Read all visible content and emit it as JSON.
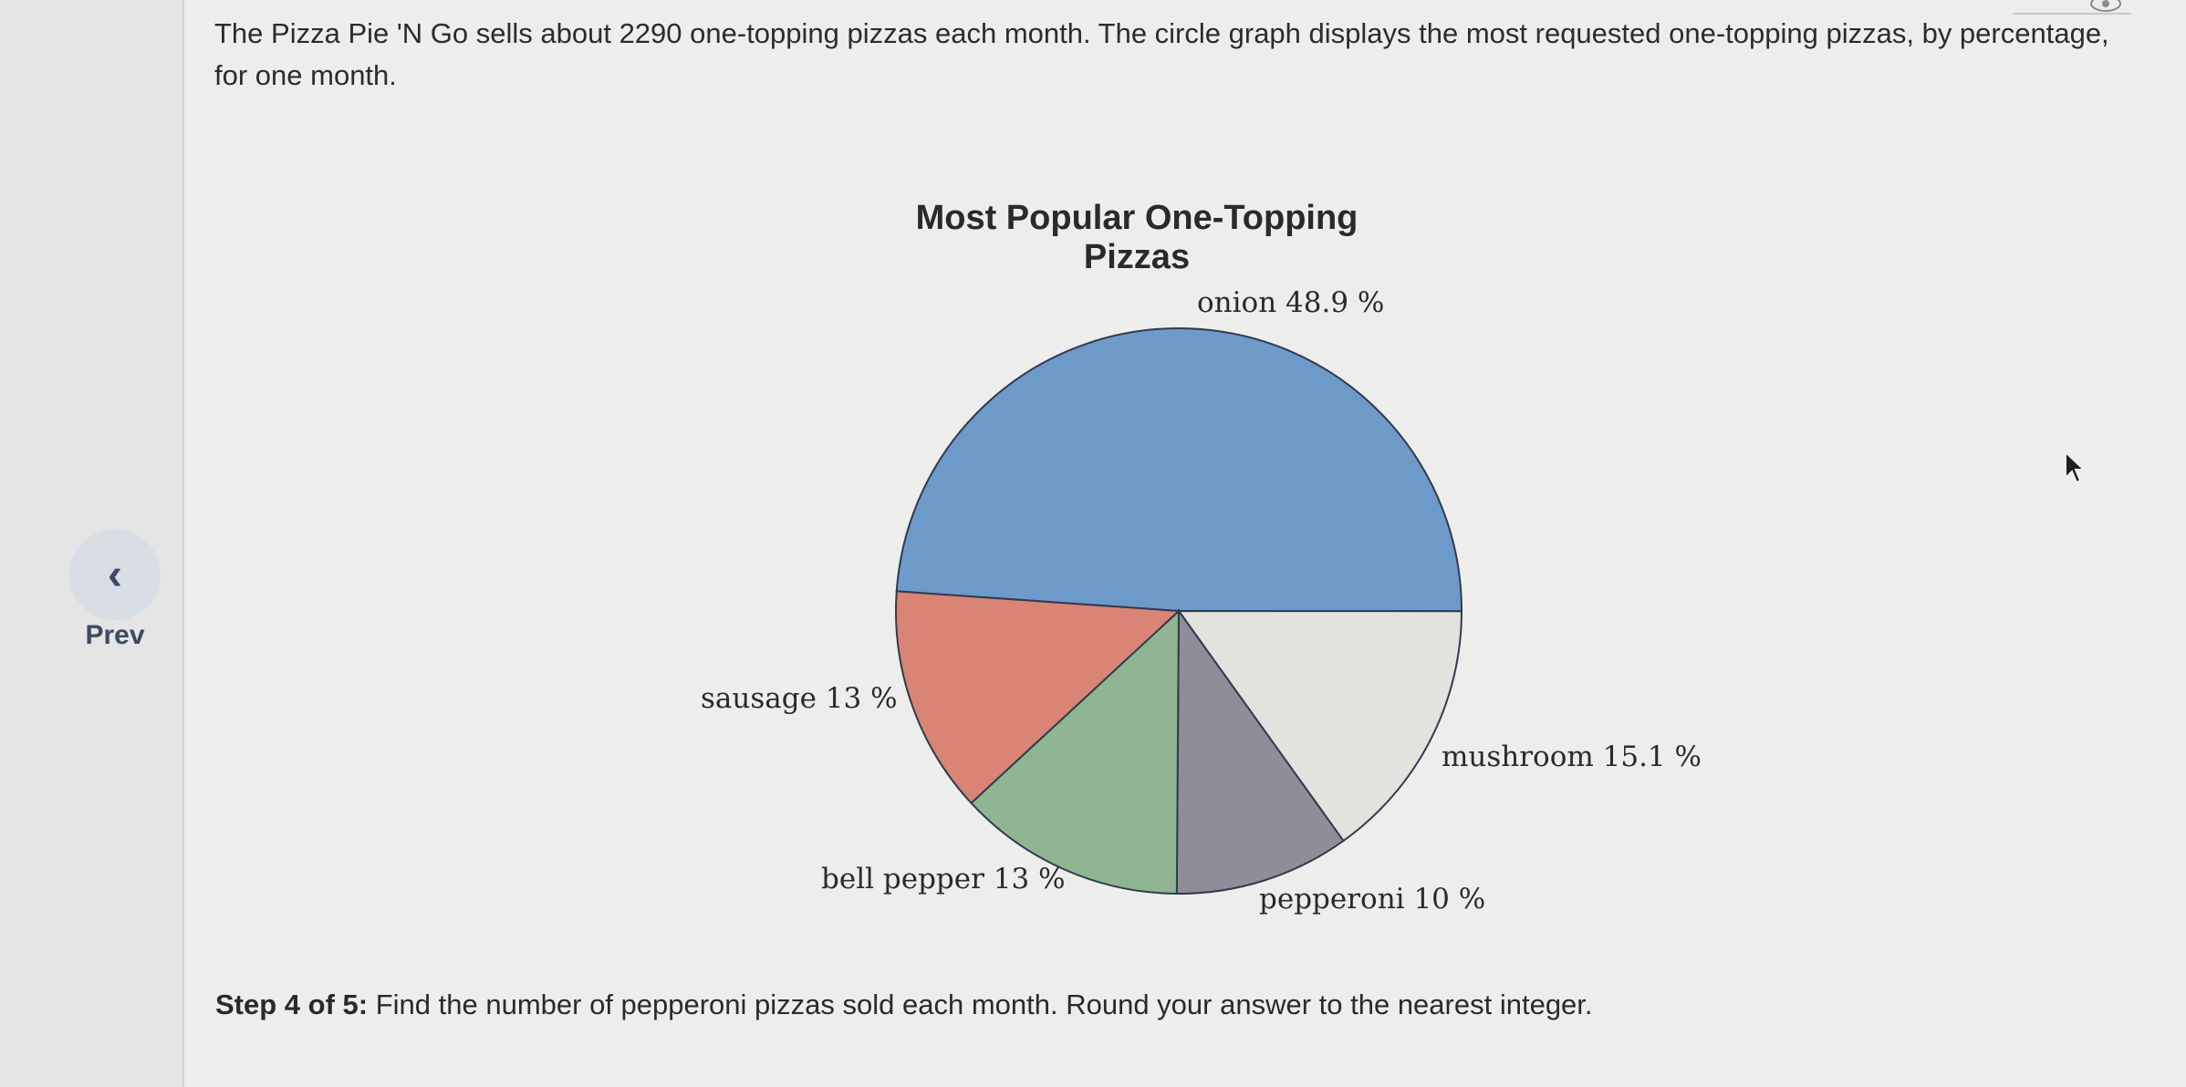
{
  "nav": {
    "prev_label": "Prev"
  },
  "problem": {
    "text": "The Pizza Pie 'N Go sells about 2290 one-topping pizzas each month. The circle graph displays the most requested one-topping pizzas, by percentage, for one month."
  },
  "chart_data": {
    "type": "pie",
    "title": "Most Popular One-Topping Pizzas",
    "categories": [
      "onion",
      "mushroom",
      "pepperoni",
      "bell pepper",
      "sausage"
    ],
    "values": [
      48.9,
      15.1,
      10,
      13,
      13
    ],
    "labels": [
      "onion 48.9 %",
      "mushroom 15.1 %",
      "pepperoni 10 %",
      "bell pepper 13 %",
      "sausage 13 %"
    ],
    "colors": [
      "#6e9ac9",
      "#e2e2df",
      "#8f8e98",
      "#8fb592",
      "#d98474"
    ]
  },
  "step": {
    "prefix": "Step 4 of 5:",
    "text": "Find the number of pepperoni pizzas sold each month. Round your answer to the nearest integer."
  }
}
